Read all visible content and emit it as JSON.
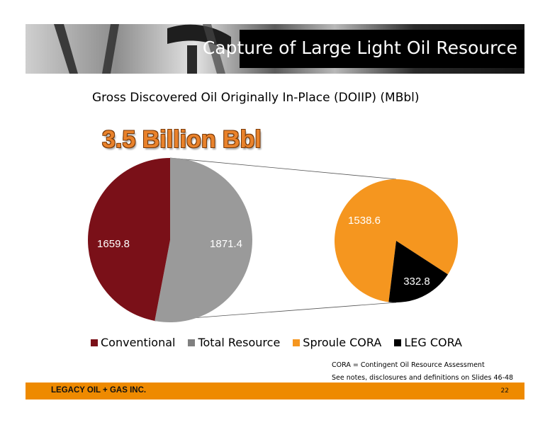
{
  "banner": {
    "title": "Capture of Large Light Oil Resource"
  },
  "subtitle": "Gross Discovered Oil Originally In-Place (DOIIP) (MBbl)",
  "headline": "3.5 Billion Bbl",
  "chart_data": [
    {
      "type": "pie",
      "categories": [
        "Conventional",
        "Total Resource"
      ],
      "values": [
        1659.8,
        1871.4
      ],
      "colors": [
        "#7a1018",
        "#9a9a9a"
      ],
      "labels": [
        "1659.8",
        "1871.4"
      ]
    },
    {
      "type": "pie",
      "categories": [
        "Sproule CORA",
        "LEG CORA"
      ],
      "values": [
        1538.6,
        332.8
      ],
      "colors": [
        "#f5961f",
        "#000000"
      ],
      "labels": [
        "1538.6",
        "332.8"
      ]
    }
  ],
  "legend": [
    {
      "label": "Conventional",
      "color": "#7a1018"
    },
    {
      "label": "Total Resource",
      "color": "#808080"
    },
    {
      "label": "Sproule CORA",
      "color": "#f5961f"
    },
    {
      "label": "LEG CORA",
      "color": "#000000"
    }
  ],
  "notes": {
    "line1": "CORA = Contingent Oil Resource Assessment",
    "line2": "See notes, disclosures and definitions on Slides 46-48"
  },
  "footer": {
    "company": "LEGACY OIL + GAS INC.",
    "page": "22"
  }
}
